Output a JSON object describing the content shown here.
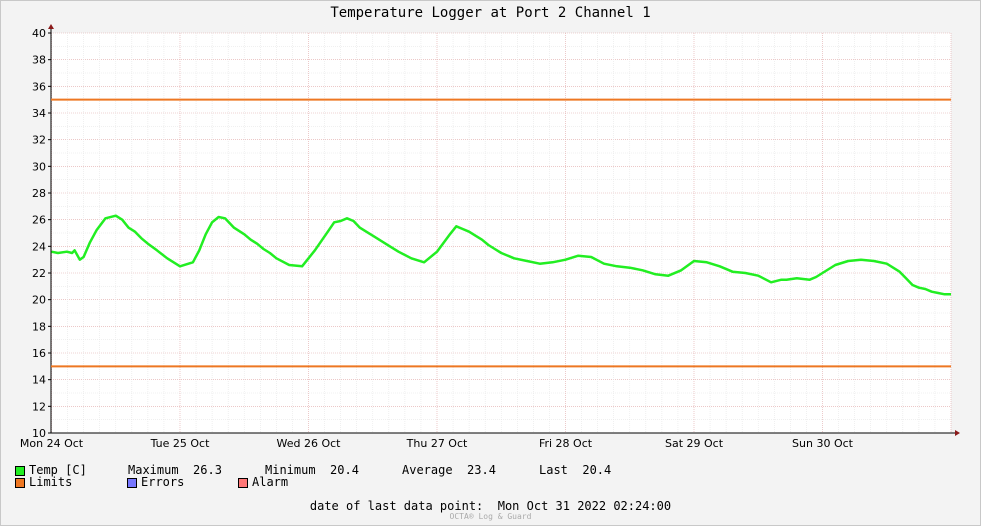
{
  "colors": {
    "temp": "#22ee22",
    "limits": "#ee7722",
    "errors": "#7777ff",
    "alarm": "#ff7777"
  },
  "chart_data": {
    "type": "line",
    "title": "Temperature Logger at Port 2 Channel 1",
    "ylim": [
      10,
      40
    ],
    "yticks": [
      "10",
      "12",
      "14",
      "16",
      "18",
      "20",
      "22",
      "24",
      "26",
      "28",
      "30",
      "32",
      "34",
      "36",
      "38",
      "40"
    ],
    "xlim": [
      0,
      7.02
    ],
    "xtick_labels": [
      "Mon 24 Oct",
      "Tue 25 Oct",
      "Wed 26 Oct",
      "Thu 27 Oct",
      "Fri 28 Oct",
      "Sat 29 Oct",
      "Sun 30 Oct"
    ],
    "grid": true,
    "limits": {
      "upper": 35,
      "lower": 15
    },
    "series": [
      {
        "name": "Temp [C]",
        "x": [
          0,
          0.05,
          0.12,
          0.16,
          0.18,
          0.22,
          0.25,
          0.3,
          0.35,
          0.42,
          0.5,
          0.55,
          0.6,
          0.65,
          0.7,
          0.75,
          0.82,
          0.9,
          1.0,
          1.1,
          1.15,
          1.2,
          1.25,
          1.3,
          1.35,
          1.42,
          1.5,
          1.55,
          1.6,
          1.65,
          1.7,
          1.75,
          1.85,
          1.95,
          2.05,
          2.15,
          2.2,
          2.25,
          2.3,
          2.35,
          2.4,
          2.45,
          2.5,
          2.55,
          2.6,
          2.65,
          2.7,
          2.8,
          2.9,
          3.0,
          3.1,
          3.15,
          3.2,
          3.25,
          3.3,
          3.35,
          3.4,
          3.45,
          3.5,
          3.6,
          3.7,
          3.8,
          3.9,
          4.0,
          4.1,
          4.2,
          4.3,
          4.4,
          4.5,
          4.6,
          4.7,
          4.8,
          4.9,
          5.0,
          5.1,
          5.2,
          5.3,
          5.4,
          5.5,
          5.6,
          5.68,
          5.72,
          5.8,
          5.9,
          5.95,
          6.0,
          6.05,
          6.1,
          6.2,
          6.3,
          6.4,
          6.5,
          6.55,
          6.6,
          6.65,
          6.7,
          6.75,
          6.8,
          6.85,
          6.9,
          6.95,
          7.0
        ],
        "y": [
          23.6,
          23.5,
          23.6,
          23.5,
          23.7,
          23.0,
          23.2,
          24.3,
          25.2,
          26.1,
          26.3,
          26.0,
          25.4,
          25.1,
          24.6,
          24.2,
          23.7,
          23.1,
          22.5,
          22.8,
          23.7,
          24.9,
          25.8,
          26.2,
          26.1,
          25.4,
          24.9,
          24.5,
          24.2,
          23.8,
          23.5,
          23.1,
          22.6,
          22.5,
          23.7,
          25.1,
          25.8,
          25.9,
          26.1,
          25.9,
          25.4,
          25.1,
          24.8,
          24.5,
          24.2,
          23.9,
          23.6,
          23.1,
          22.8,
          23.6,
          24.9,
          25.5,
          25.3,
          25.1,
          24.8,
          24.5,
          24.1,
          23.8,
          23.5,
          23.1,
          22.9,
          22.7,
          22.8,
          23.0,
          23.3,
          23.2,
          22.7,
          22.5,
          22.4,
          22.2,
          21.9,
          21.8,
          22.2,
          22.9,
          22.8,
          22.5,
          22.1,
          22.0,
          21.8,
          21.3,
          21.5,
          21.5,
          21.6,
          21.5,
          21.7,
          22.0,
          22.3,
          22.6,
          22.9,
          23.0,
          22.9,
          22.7,
          22.4,
          22.1,
          21.6,
          21.1,
          20.9,
          20.8,
          20.6,
          20.5,
          20.4,
          20.4
        ]
      }
    ],
    "legend": {
      "temp_label": "Temp [C]",
      "max_label": "Maximum",
      "max_value": "26.3",
      "min_label": "Minimum",
      "min_value": "20.4",
      "avg_label": "Average",
      "avg_value": "23.4",
      "last_label": "Last",
      "last_value": "20.4",
      "limits_label": "Limits",
      "errors_label": "Errors",
      "alarm_label": "Alarm"
    }
  },
  "footer": {
    "last_point_label": "date of last data point:",
    "last_point_value": "Mon Oct 31 2022 02:24:00",
    "watermark": "OCTA® Log & Guard"
  }
}
